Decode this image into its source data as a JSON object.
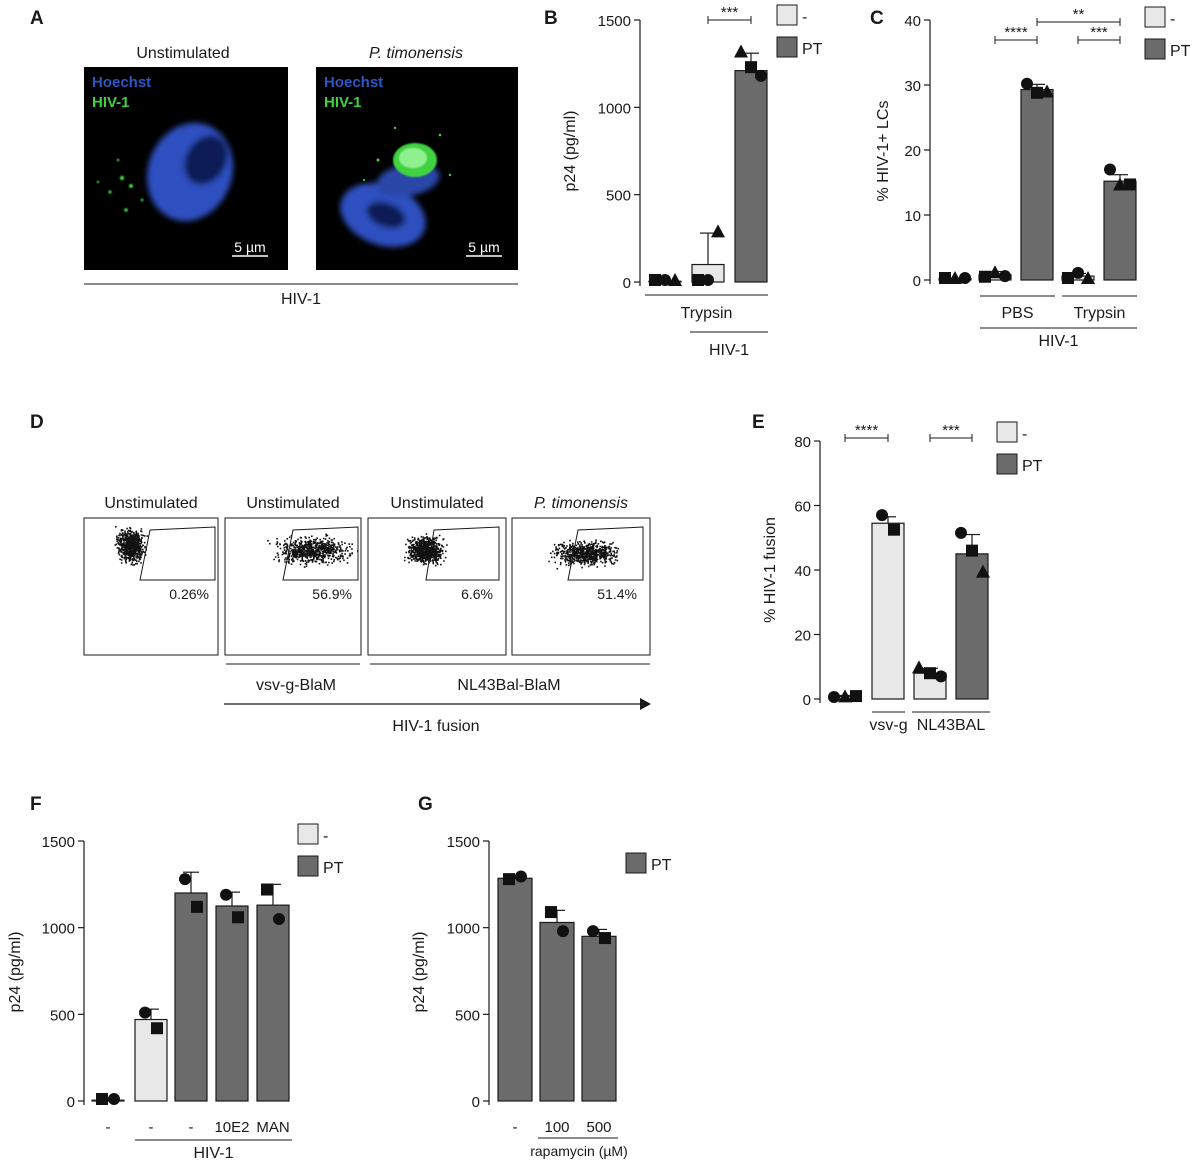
{
  "panels": {
    "A": "A",
    "B": "B",
    "C": "C",
    "D": "D",
    "E": "E",
    "F": "F",
    "G": "G"
  },
  "colors": {
    "control": "#e8e8e8",
    "pt": "#6b6b6b",
    "hoechst": "#2d55c8",
    "hiv": "#3fd23f"
  },
  "legend": {
    "control": "-",
    "pt": "PT"
  },
  "panel_A": {
    "images": [
      {
        "title": "Unstimulated",
        "stain1": "Hoechst",
        "stain2": "HIV-1",
        "scale": "5 µm"
      },
      {
        "title": "P. timonensis",
        "stain1": "Hoechst",
        "stain2": "HIV-1",
        "scale": "5 µm"
      }
    ],
    "group": "HIV-1"
  },
  "panel_D": {
    "plots": [
      {
        "title": "Unstimulated",
        "percent": "0.26%"
      },
      {
        "title": "Unstimulated",
        "percent": "56.9%"
      },
      {
        "title": "Unstimulated",
        "percent": "6.6%"
      },
      {
        "title": "P. timonensis",
        "percent": "51.4%"
      }
    ],
    "group1": "vsv-g-BlaM",
    "group2": "NL43Bal-BlaM",
    "axis": "HIV-1 fusion"
  },
  "chart_data": [
    {
      "panel": "B",
      "type": "bar",
      "ylabel": "p24 (pg/ml)",
      "ylim": [
        0,
        1500
      ],
      "yticks": [
        0,
        500,
        1000,
        1500
      ],
      "bars": [
        {
          "group": "-",
          "value": 0,
          "err": 0,
          "points": [
            [
              "square",
              0
            ],
            [
              "circle",
              0
            ],
            [
              "triangle",
              0
            ]
          ]
        },
        {
          "group": "-",
          "value": 100,
          "err": 180,
          "points": [
            [
              "square",
              0
            ],
            [
              "circle",
              0
            ],
            [
              "triangle",
              290
            ]
          ]
        },
        {
          "group": "PT",
          "value": 1210,
          "err": 100,
          "points": [
            [
              "triangle",
              1320
            ],
            [
              "square",
              1230
            ],
            [
              "circle",
              1180
            ]
          ]
        }
      ],
      "brackets": [
        {
          "label": "Trypsin",
          "from": 0,
          "to": 2
        },
        {
          "label": "HIV-1",
          "from": 1,
          "to": 2
        }
      ],
      "significance": [
        {
          "label": "***",
          "from": 1,
          "to": 2
        }
      ]
    },
    {
      "panel": "C",
      "type": "bar",
      "ylabel": "% HIV-1+ LCs",
      "ylim": [
        0,
        40
      ],
      "yticks": [
        0,
        10,
        20,
        30,
        40
      ],
      "bars": [
        {
          "group": "-",
          "value": 0.2,
          "err": 0.1,
          "points": [
            [
              "square",
              0.2
            ],
            [
              "triangle",
              0.3
            ],
            [
              "circle",
              0.2
            ]
          ]
        },
        {
          "group": "-",
          "value": 0.8,
          "err": 0.5,
          "points": [
            [
              "square",
              0.5
            ],
            [
              "triangle",
              1.2
            ],
            [
              "circle",
              0.6
            ]
          ]
        },
        {
          "group": "PT",
          "value": 29.3,
          "err": 0.8,
          "points": [
            [
              "circle",
              30.2
            ],
            [
              "square",
              28.8
            ],
            [
              "triangle",
              29.0
            ]
          ]
        },
        {
          "group": "-",
          "value": 0.6,
          "err": 0.4,
          "points": [
            [
              "square",
              0.3
            ],
            [
              "circle",
              1.1
            ],
            [
              "triangle",
              0.3
            ]
          ]
        },
        {
          "group": "PT",
          "value": 15.2,
          "err": 1.0,
          "points": [
            [
              "circle",
              17.0
            ],
            [
              "triangle",
              14.7
            ],
            [
              "square",
              14.7
            ]
          ]
        }
      ],
      "brackets": [
        {
          "label": "PBS",
          "from": 1,
          "to": 2
        },
        {
          "label": "Trypsin",
          "from": 3,
          "to": 4
        },
        {
          "label": "HIV-1",
          "from": 1,
          "to": 4
        }
      ],
      "significance": [
        {
          "label": "****",
          "from": 1,
          "to": 2
        },
        {
          "label": "***",
          "from": 3,
          "to": 4
        },
        {
          "label": "**",
          "from": 2,
          "to": 4
        }
      ]
    },
    {
      "panel": "E",
      "type": "bar",
      "ylabel": "% HIV-1 fusion",
      "ylim": [
        0,
        80
      ],
      "yticks": [
        0,
        20,
        40,
        60,
        80
      ],
      "bars": [
        {
          "group": "-",
          "value": 0.8,
          "err": 0.3,
          "points": [
            [
              "circle",
              0.6
            ],
            [
              "triangle",
              0.8
            ],
            [
              "square",
              0.9
            ]
          ]
        },
        {
          "group": "-",
          "value": 54.5,
          "err": 2.0,
          "points": [
            [
              "circle",
              57.0
            ],
            [
              "square",
              52.5
            ]
          ]
        },
        {
          "group": "-",
          "value": 8.0,
          "err": 1.5,
          "points": [
            [
              "triangle",
              9.8
            ],
            [
              "square",
              8.0
            ],
            [
              "circle",
              7.0
            ]
          ]
        },
        {
          "group": "PT",
          "value": 45.0,
          "err": 6.0,
          "points": [
            [
              "circle",
              51.5
            ],
            [
              "square",
              46.0
            ],
            [
              "triangle",
              39.5
            ]
          ]
        }
      ],
      "brackets": [
        {
          "label": "vsv-g",
          "from": 1,
          "to": 1
        },
        {
          "label": "NL43BAL",
          "from": 2,
          "to": 3
        }
      ],
      "significance": [
        {
          "label": "****",
          "from": 0,
          "to": 1
        },
        {
          "label": "***",
          "from": 2,
          "to": 3
        }
      ]
    },
    {
      "panel": "F",
      "type": "bar",
      "ylabel": "p24 (pg/ml)",
      "ylim": [
        0,
        1500
      ],
      "yticks": [
        0,
        500,
        1000,
        1500
      ],
      "categories": [
        "-",
        "-",
        "-",
        "10E2",
        "MAN"
      ],
      "bars": [
        {
          "group": "-",
          "value": 0,
          "err": 0,
          "points": [
            [
              "square",
              0
            ],
            [
              "circle",
              0
            ]
          ]
        },
        {
          "group": "-",
          "value": 470,
          "err": 60,
          "points": [
            [
              "circle",
              510
            ],
            [
              "square",
              420
            ]
          ]
        },
        {
          "group": "PT",
          "value": 1200,
          "err": 120,
          "points": [
            [
              "circle",
              1280
            ],
            [
              "square",
              1120
            ]
          ]
        },
        {
          "group": "PT",
          "value": 1125,
          "err": 80,
          "points": [
            [
              "circle",
              1190
            ],
            [
              "square",
              1060
            ]
          ]
        },
        {
          "group": "PT",
          "value": 1130,
          "err": 120,
          "points": [
            [
              "square",
              1220
            ],
            [
              "circle",
              1050
            ]
          ]
        }
      ],
      "brackets": [
        {
          "label": "HIV-1",
          "from": 1,
          "to": 4
        }
      ]
    },
    {
      "panel": "G",
      "type": "bar",
      "ylabel": "p24 (pg/ml)",
      "ylim": [
        0,
        1500
      ],
      "yticks": [
        0,
        500,
        1000,
        1500
      ],
      "categories": [
        "-",
        "100",
        "500"
      ],
      "xlabel": "rapamycin (µM)",
      "bars": [
        {
          "group": "PT",
          "value": 1285,
          "err": 10,
          "points": [
            [
              "square",
              1280
            ],
            [
              "circle",
              1295
            ]
          ]
        },
        {
          "group": "PT",
          "value": 1030,
          "err": 70,
          "points": [
            [
              "square",
              1090
            ],
            [
              "circle",
              980
            ]
          ]
        },
        {
          "group": "PT",
          "value": 950,
          "err": 40,
          "points": [
            [
              "circle",
              980
            ],
            [
              "square",
              940
            ]
          ]
        }
      ],
      "brackets": [
        {
          "label": "",
          "from": 1,
          "to": 2
        }
      ]
    }
  ]
}
